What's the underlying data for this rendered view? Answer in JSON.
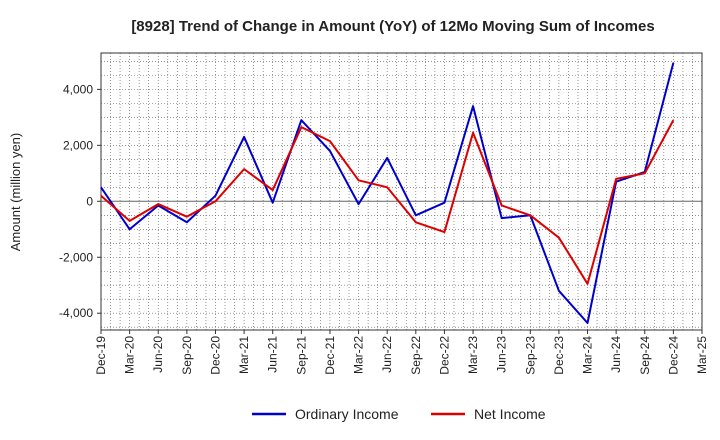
{
  "chart_data": {
    "type": "line",
    "title": "[8928]  Trend of Change in Amount (YoY) of 12Mo Moving Sum of Incomes",
    "xlabel": "",
    "ylabel": "Amount (million yen)",
    "ylim": [
      -4600,
      5300
    ],
    "yticks": [
      -4000,
      -2000,
      0,
      2000,
      4000
    ],
    "ytick_labels": [
      "-4,000",
      "-2,000",
      "0",
      "2,000",
      "4,000"
    ],
    "grid": true,
    "legend_position": "bottom-center",
    "x_tick_labels": [
      "Dec-19",
      "Mar-20",
      "Jun-20",
      "Sep-20",
      "Dec-20",
      "Mar-21",
      "Jun-21",
      "Sep-21",
      "Dec-21",
      "Mar-22",
      "Jun-22",
      "Sep-22",
      "Dec-22",
      "Mar-23",
      "Jun-23",
      "Sep-23",
      "Dec-23",
      "Mar-24",
      "Jun-24",
      "Sep-24",
      "Dec-24",
      "Mar-25"
    ],
    "series": [
      {
        "name": "Ordinary Income",
        "color": "#0000cc",
        "values": [
          500,
          -1000,
          -150,
          -750,
          200,
          2300,
          -50,
          2900,
          1800,
          -100,
          1550,
          -500,
          -50,
          3400,
          -600,
          -500,
          -3200,
          -4350,
          700,
          1050,
          4950,
          null
        ]
      },
      {
        "name": "Net Income",
        "color": "#dd0000",
        "values": [
          200,
          -700,
          -100,
          -550,
          0,
          1150,
          400,
          2650,
          2150,
          750,
          500,
          -750,
          -1100,
          2450,
          -150,
          -500,
          -1300,
          -2950,
          800,
          1000,
          2900,
          null
        ]
      }
    ]
  }
}
